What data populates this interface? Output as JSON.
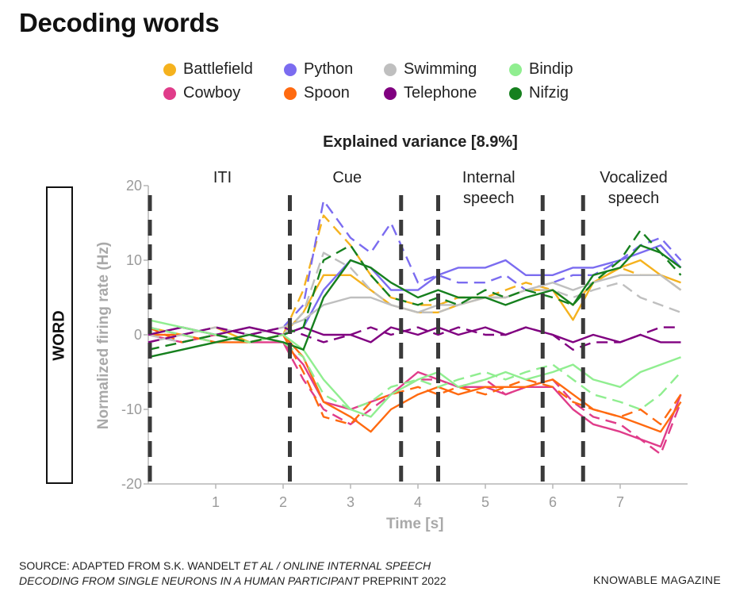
{
  "header": {
    "title": "Decoding words"
  },
  "legend": [
    {
      "label": "Battlefield",
      "color": "#f5b21e"
    },
    {
      "label": "Python",
      "color": "#7b6cf0"
    },
    {
      "label": "Swimming",
      "color": "#bfbfbf"
    },
    {
      "label": "Bindip",
      "color": "#90ee90"
    },
    {
      "label": "Cowboy",
      "color": "#e03c8a"
    },
    {
      "label": "Spoon",
      "color": "#ff6a10"
    },
    {
      "label": "Telephone",
      "color": "#800080"
    },
    {
      "label": "Nifzig",
      "color": "#16801e"
    }
  ],
  "row_label": "WORD",
  "footer": {
    "source_line1_a": "SOURCE: ADAPTED FROM S.K. WANDELT ",
    "source_line1_b": "ET AL / ONLINE INTERNAL SPEECH",
    "source_line2_a": "DECODING FROM SINGLE NEURONS IN A HUMAN PARTICIPANT",
    "source_line2_b": " PREPRINT 2022",
    "brand": "KNOWABLE MAGAZINE"
  },
  "chart_data": {
    "type": "line",
    "title": "Explained variance [8.9%]",
    "xlabel": "Time [s]",
    "ylabel": "Normalized firing rate (Hz)",
    "xlim": [
      0,
      8
    ],
    "ylim": [
      -20,
      20
    ],
    "xticks": [
      1,
      2,
      3,
      4,
      5,
      6,
      7
    ],
    "yticks": [
      20,
      10,
      0,
      -10,
      -20
    ],
    "grid": false,
    "legend_position": "top",
    "phase_boundaries": [
      0,
      2.1,
      3.75,
      4.3,
      5.85,
      6.45
    ],
    "phases": [
      {
        "label": [
          "ITI"
        ],
        "x": 1.1
      },
      {
        "label": [
          "Cue"
        ],
        "x": 2.95
      },
      {
        "label": [
          "Internal",
          "speech"
        ],
        "x": 5.05
      },
      {
        "label": [
          "Vocalized",
          "speech"
        ],
        "x": 7.2
      }
    ],
    "x": [
      0,
      0.5,
      1,
      1.5,
      2,
      2.3,
      2.6,
      3,
      3.3,
      3.6,
      4,
      4.3,
      4.6,
      5,
      5.3,
      5.6,
      6,
      6.3,
      6.6,
      7,
      7.3,
      7.6,
      7.9
    ],
    "series": [
      {
        "name": "Battlefield",
        "color": "#f5b21e",
        "values": [
          1,
          0,
          1,
          -1,
          0,
          3,
          8,
          8,
          6,
          4,
          3,
          3,
          4,
          5,
          5,
          6,
          6,
          2,
          7,
          9,
          10,
          8,
          7
        ],
        "dashed": [
          0,
          1,
          0,
          1,
          0,
          6,
          16,
          12,
          8,
          5,
          4,
          4,
          5,
          5,
          6,
          7,
          6,
          4,
          7,
          9,
          8,
          8,
          6
        ]
      },
      {
        "name": "Cowboy",
        "color": "#e03c8a",
        "values": [
          0,
          -1,
          0,
          -1,
          -1,
          -4,
          -9,
          -10,
          -9,
          -8,
          -5,
          -6,
          -7,
          -7,
          -8,
          -7,
          -7,
          -10,
          -12,
          -13,
          -14,
          -15,
          -8
        ],
        "dashed": [
          -1,
          0,
          -1,
          0,
          -1,
          -6,
          -10,
          -12,
          -10,
          -8,
          -6,
          -6,
          -7,
          -6,
          -8,
          -7,
          -6,
          -9,
          -11,
          -12,
          -14,
          -16,
          -9
        ]
      },
      {
        "name": "Python",
        "color": "#7b6cf0",
        "values": [
          0,
          1,
          0,
          1,
          0,
          1,
          6,
          10,
          9,
          6,
          6,
          8,
          9,
          9,
          10,
          8,
          8,
          9,
          9,
          10,
          11,
          12,
          9
        ],
        "dashed": [
          1,
          0,
          1,
          0,
          1,
          4,
          18,
          13,
          11,
          15,
          7,
          8,
          7,
          7,
          8,
          6,
          7,
          8,
          8,
          10,
          12,
          13,
          10
        ]
      },
      {
        "name": "Spoon",
        "color": "#ff6a10",
        "values": [
          0,
          0,
          -1,
          -1,
          0,
          -3,
          -9,
          -11,
          -13,
          -10,
          -8,
          -7,
          -8,
          -7,
          -7,
          -7,
          -6,
          -8,
          -10,
          -11,
          -12,
          -13,
          -9
        ],
        "dashed": [
          1,
          -1,
          0,
          -1,
          0,
          -5,
          -11,
          -12,
          -9,
          -8,
          -7,
          -8,
          -7,
          -8,
          -7,
          -6,
          -7,
          -9,
          -10,
          -11,
          -10,
          -12,
          -8
        ]
      },
      {
        "name": "Swimming",
        "color": "#bfbfbf",
        "values": [
          -1,
          0,
          1,
          0,
          1,
          2,
          4,
          5,
          5,
          4,
          3,
          4,
          4,
          5,
          5,
          6,
          7,
          6,
          7,
          8,
          8,
          8,
          6
        ],
        "dashed": [
          0,
          -1,
          0,
          1,
          0,
          3,
          11,
          9,
          6,
          4,
          3,
          3,
          4,
          5,
          5,
          6,
          6,
          5,
          6,
          7,
          5,
          4,
          3
        ]
      },
      {
        "name": "Telephone",
        "color": "#800080",
        "values": [
          0,
          1,
          0,
          1,
          0,
          1,
          0,
          0,
          -1,
          1,
          0,
          1,
          0,
          1,
          0,
          1,
          0,
          -1,
          0,
          -1,
          0,
          -1,
          -1
        ],
        "dashed": [
          -1,
          0,
          1,
          0,
          1,
          0,
          -1,
          0,
          1,
          0,
          1,
          0,
          1,
          0,
          0,
          1,
          0,
          -2,
          -1,
          -1,
          0,
          1,
          1
        ]
      },
      {
        "name": "Bindip",
        "color": "#90ee90",
        "values": [
          2,
          1,
          0,
          -1,
          0,
          -2,
          -6,
          -10,
          -11,
          -8,
          -6,
          -5,
          -7,
          -6,
          -5,
          -6,
          -5,
          -4,
          -6,
          -7,
          -5,
          -4,
          -3
        ],
        "dashed": [
          1,
          0,
          -1,
          0,
          -1,
          -3,
          -8,
          -10,
          -9,
          -7,
          -6,
          -7,
          -6,
          -5,
          -6,
          -5,
          -4,
          -6,
          -8,
          -9,
          -10,
          -8,
          -5
        ]
      },
      {
        "name": "Nifzig",
        "color": "#16801e",
        "values": [
          -3,
          -2,
          -1,
          0,
          -1,
          -2,
          5,
          10,
          9,
          7,
          5,
          6,
          5,
          5,
          4,
          5,
          6,
          4,
          8,
          9,
          12,
          11,
          9
        ],
        "dashed": [
          -2,
          -1,
          0,
          -1,
          0,
          1,
          10,
          12,
          8,
          5,
          4,
          5,
          4,
          6,
          5,
          6,
          5,
          4,
          7,
          10,
          14,
          11,
          8
        ]
      }
    ]
  }
}
